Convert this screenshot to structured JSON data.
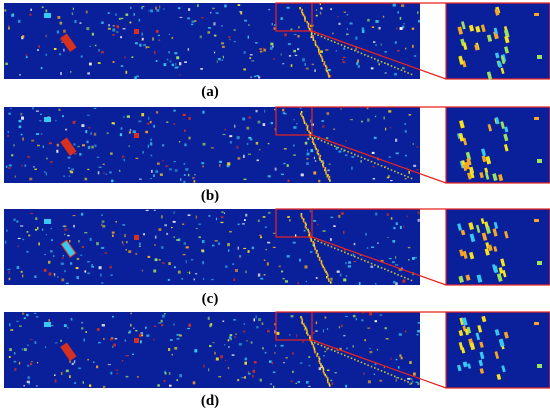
{
  "panels": [
    {
      "label": "(a)"
    },
    {
      "label": "(b)"
    },
    {
      "label": "(c)"
    },
    {
      "label": "(d)"
    }
  ],
  "colors": {
    "background_map": "#0a1f9a",
    "zoom_box": "#e8231f",
    "yellow_target": "#f4e31e",
    "orange_target": "#f5a623",
    "cyan_target": "#38c8f0",
    "green_target": "#9be15d",
    "red_target": "#d7301f"
  }
}
